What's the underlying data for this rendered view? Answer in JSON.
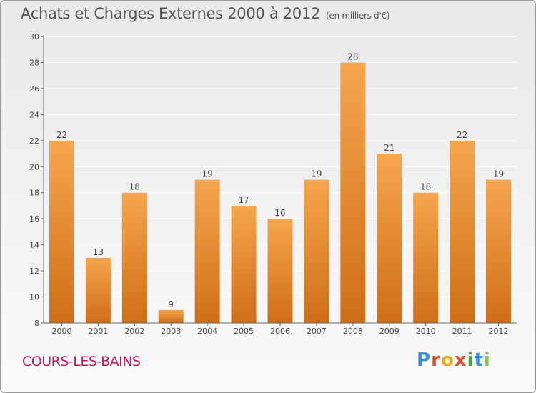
{
  "header": {
    "title": "Achats et Charges Externes 2000 à 2012",
    "subtitle": "(en milliers d'€)"
  },
  "footer": {
    "town": "COURS-LES-BAINS",
    "logo_letters": [
      "P",
      "r",
      "o",
      "x",
      "i",
      "t",
      "i"
    ],
    "logo_colors": [
      "#3b8ed8",
      "#e64a2e",
      "#f2a51a",
      "#e64a2e",
      "#3fae3f",
      "#3b8ed8",
      "#8bc34a"
    ]
  },
  "colors": {
    "bar_top": "#f6a64e",
    "bar_bottom": "#cf6e18",
    "axis": "#666666",
    "grid": "#ffffff"
  },
  "chart_data": {
    "type": "bar",
    "categories": [
      "2000",
      "2001",
      "2002",
      "2003",
      "2004",
      "2005",
      "2006",
      "2007",
      "2008",
      "2009",
      "2010",
      "2011",
      "2012"
    ],
    "values": [
      22,
      13,
      18,
      9,
      19,
      17,
      16,
      19,
      28,
      21,
      18,
      22,
      19
    ],
    "title": "Achats et Charges Externes 2000 à 2012",
    "subtitle": "(en milliers d'€)",
    "xlabel": "",
    "ylabel": "",
    "ylim": [
      8,
      30
    ],
    "yticks": [
      8,
      10,
      12,
      14,
      16,
      18,
      20,
      22,
      24,
      26,
      28,
      30
    ],
    "grid": true,
    "legend": "none"
  }
}
